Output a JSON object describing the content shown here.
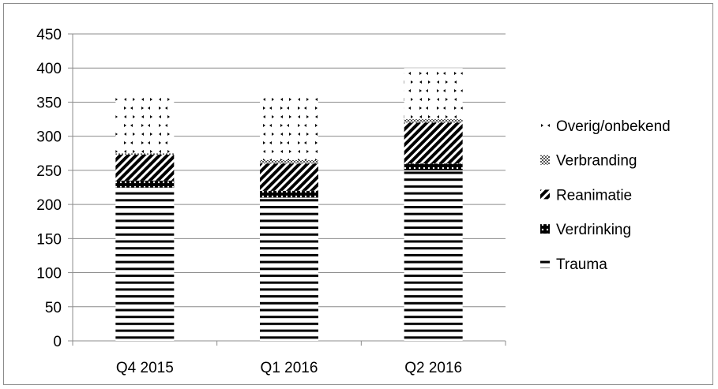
{
  "chart_data": {
    "type": "bar",
    "stacked": true,
    "categories": [
      "Q4 2015",
      "Q1 2016",
      "Q2 2016"
    ],
    "series": [
      {
        "name": "Trauma",
        "pattern": "horizontal-lines",
        "values": [
          225,
          210,
          250
        ]
      },
      {
        "name": "Verdrinking",
        "pattern": "dotted-dark",
        "values": [
          10,
          10,
          10
        ]
      },
      {
        "name": "Reanimatie",
        "pattern": "diagonal-stripes",
        "values": [
          38,
          40,
          60
        ]
      },
      {
        "name": "Verbranding",
        "pattern": "checkered",
        "values": [
          2,
          5,
          5
        ]
      },
      {
        "name": "Overig/onbekend",
        "pattern": "sparse-dots",
        "values": [
          85,
          95,
          75
        ]
      }
    ],
    "title": "",
    "xlabel": "",
    "ylabel": "",
    "ylim": [
      0,
      450
    ],
    "yticks": [
      "0",
      "50",
      "100",
      "150",
      "200",
      "250",
      "300",
      "350",
      "400",
      "450"
    ],
    "grid": true,
    "legend_position": "right",
    "colors": {
      "ink": "#000000",
      "grid": "#8c8c8c",
      "background": "#ffffff"
    }
  }
}
